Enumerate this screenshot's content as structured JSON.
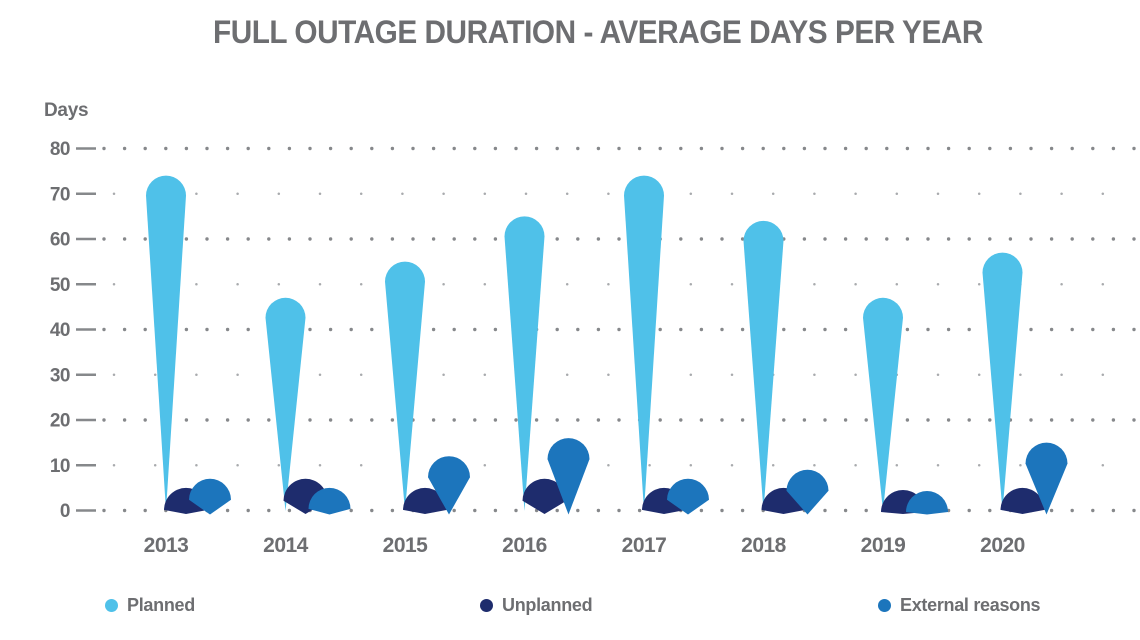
{
  "title": "FULL OUTAGE DURATION - AVERAGE DAYS PER YEAR",
  "y_axis_label": "Days",
  "legend": [
    {
      "label": "Planned",
      "series": "planned"
    },
    {
      "label": "Unplanned",
      "series": "unplanned"
    },
    {
      "label": "External reasons",
      "series": "external"
    }
  ],
  "colors": {
    "planned": "#4FC1E9",
    "unplanned": "#1E2C6D",
    "external": "#1C75BC",
    "title_text": "#6D6E71",
    "axis_text": "#6D6E71",
    "grid_dot_major": "#86888B",
    "grid_dot_minor": "#A8AAAD",
    "background": "#FFFFFF"
  },
  "chart_data": {
    "type": "bar",
    "style": "teardrop-markers",
    "title": "FULL OUTAGE DURATION - AVERAGE DAYS PER YEAR",
    "categories": [
      "2013",
      "2014",
      "2015",
      "2016",
      "2017",
      "2018",
      "2019",
      "2020"
    ],
    "series": [
      {
        "name": "Planned",
        "key": "planned",
        "values": [
          74,
          47,
          55,
          65,
          74,
          64,
          47,
          57
        ]
      },
      {
        "name": "Unplanned",
        "key": "unplanned",
        "values": [
          5,
          7,
          5,
          7,
          5,
          5,
          4,
          5
        ]
      },
      {
        "name": "External reasons",
        "key": "external",
        "values": [
          7,
          5,
          12,
          16,
          7,
          9,
          4,
          15
        ]
      }
    ],
    "xlabel": "",
    "ylabel": "Days",
    "ylim": [
      0,
      80
    ],
    "ytick_step": 10,
    "grid": "dotted-horizontal",
    "legend_position": "bottom"
  }
}
